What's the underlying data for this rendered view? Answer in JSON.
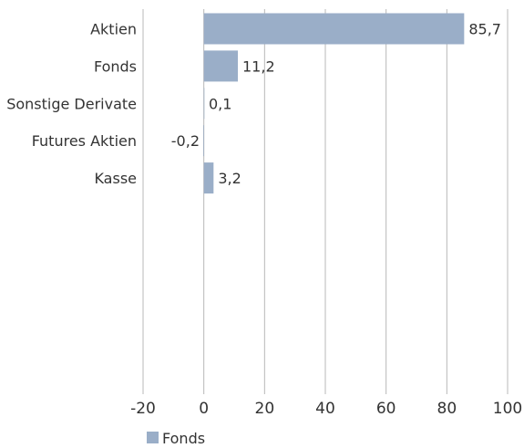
{
  "chart_data": {
    "type": "bar",
    "orientation": "horizontal",
    "categories": [
      "Aktien",
      "Fonds",
      "Sonstige Derivate",
      "Futures Aktien",
      "Kasse"
    ],
    "series": [
      {
        "name": "Fonds",
        "values": [
          85.7,
          11.2,
          0.1,
          -0.2,
          3.2
        ],
        "color": "#9aaec8"
      }
    ],
    "data_labels": [
      "85,7",
      "11,2",
      "0,1",
      "-0,2",
      "3,2"
    ],
    "xlim": [
      -20,
      100
    ],
    "xticks": [
      -20,
      0,
      20,
      40,
      60,
      80,
      100
    ],
    "xtick_labels": [
      "-20",
      "0",
      "20",
      "40",
      "60",
      "80",
      "100"
    ],
    "grid": "vertical",
    "legend": {
      "position": "bottom-left",
      "entries": [
        "Fonds"
      ]
    },
    "title": "",
    "xlabel": "",
    "ylabel": ""
  }
}
